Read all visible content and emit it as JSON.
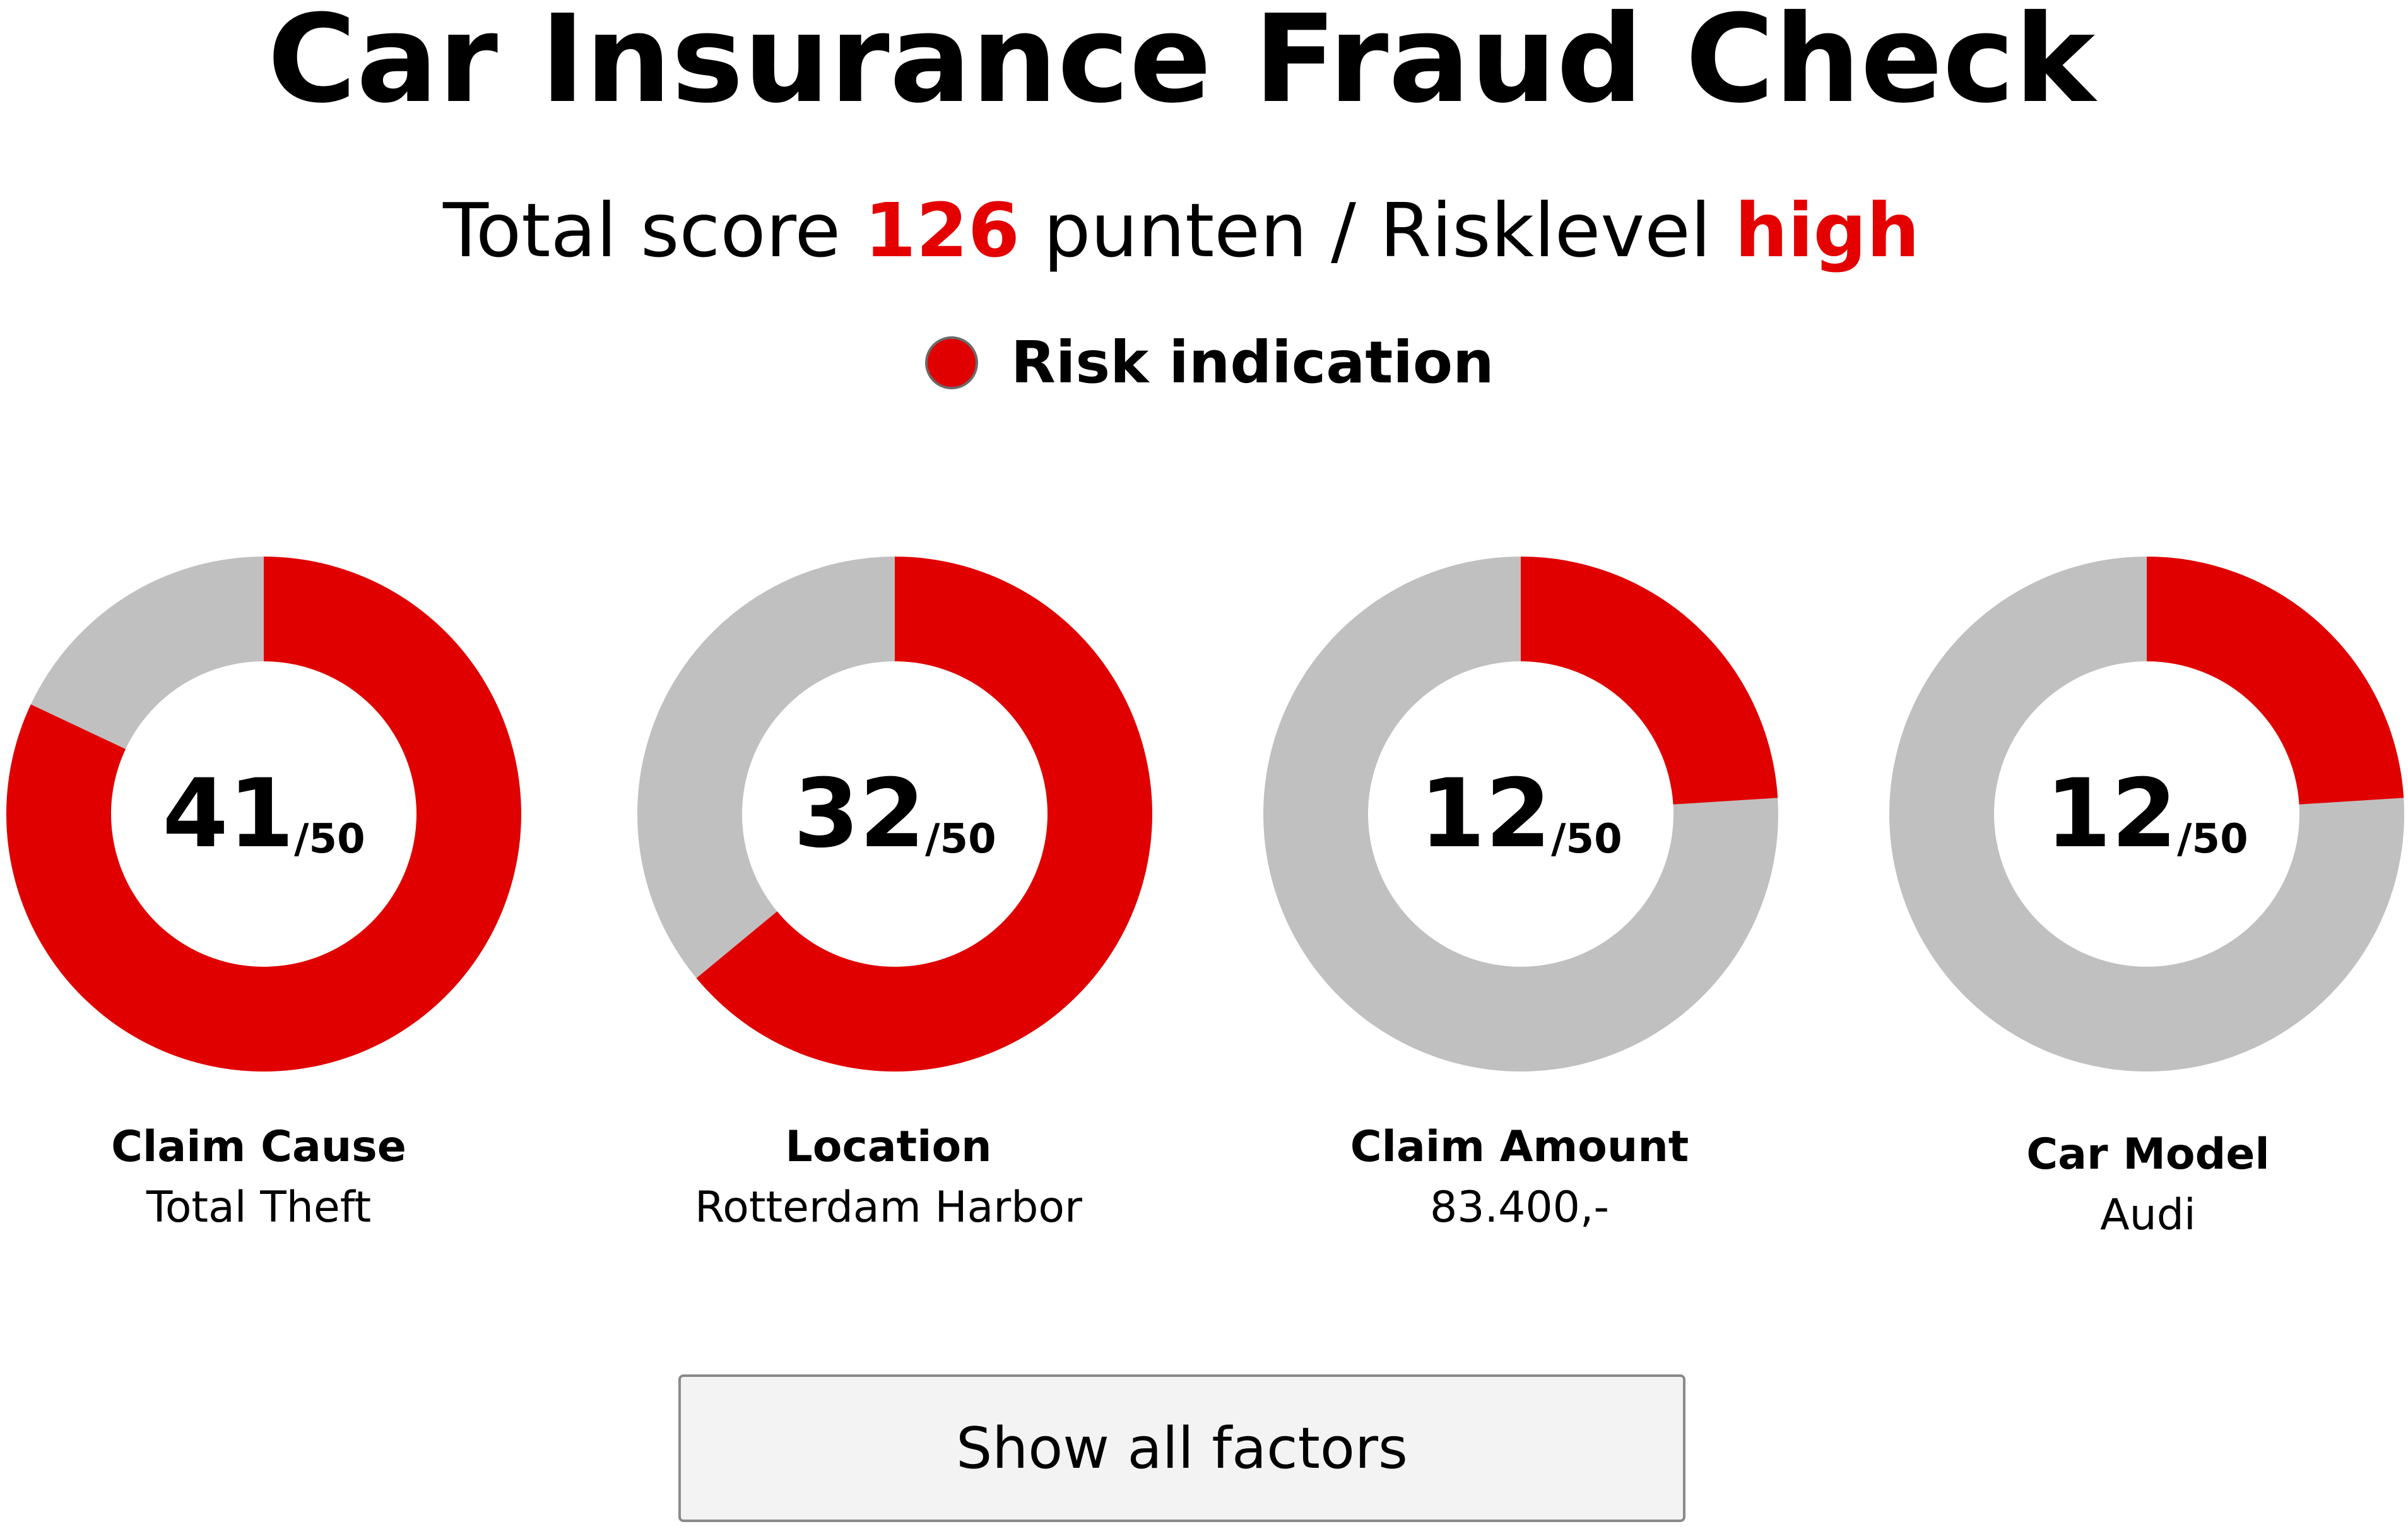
{
  "title": "Car Insurance Fraud Check",
  "summary": {
    "prefix": "Total score ",
    "score": "126",
    "middle": " punten / Risklevel ",
    "risk_level": "high"
  },
  "legend": {
    "label": "Risk indication",
    "color": "#e00000"
  },
  "colors": {
    "risk": "#e00000",
    "remainder": "#c0c0c0",
    "highlight": "#e50000"
  },
  "factors": [
    {
      "score": "41",
      "max": "/50",
      "name": "Claim Cause",
      "value": "Total Theft",
      "fraction": 0.82
    },
    {
      "score": "32",
      "max": "/50",
      "name": "Location",
      "value": "Rotterdam Harbor",
      "fraction": 0.64
    },
    {
      "score": "12",
      "max": "/50",
      "name": "Claim Amount",
      "value": "83.400,-",
      "fraction": 0.24
    },
    {
      "score": "12",
      "max": "/50",
      "name": "Car Model",
      "value": "Audi",
      "fraction": 0.24
    }
  ],
  "button": {
    "label": "Show all factors"
  }
}
